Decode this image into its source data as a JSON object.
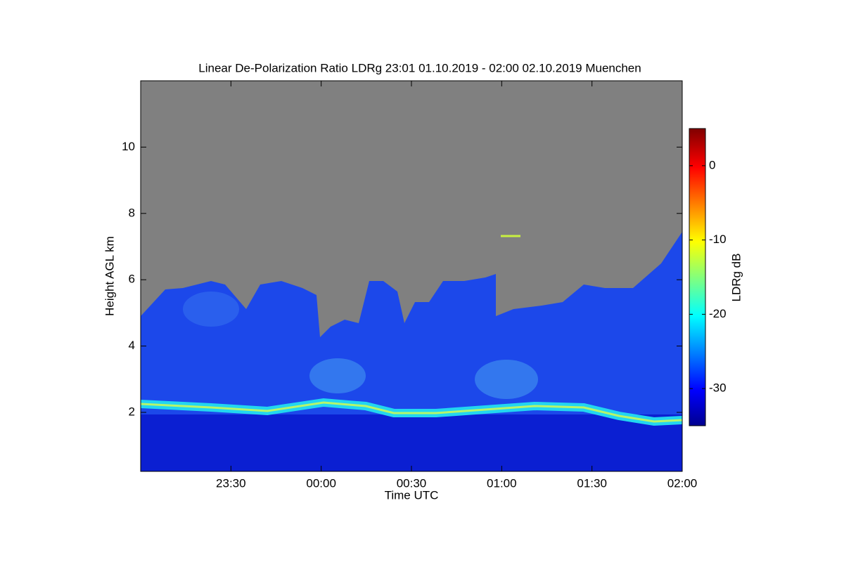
{
  "chart_data": {
    "type": "heatmap",
    "title": "Linear De-Polarization Ratio LDRg   23:01 01.10.2019 - 02:00 02.10.2019 Muenchen",
    "x_label": "Time UTC",
    "y_label": "Height AGL km",
    "xlim": [
      0,
      180
    ],
    "xticks": [
      {
        "value": 30,
        "label": "23:30"
      },
      {
        "value": 60,
        "label": "00:00"
      },
      {
        "value": 90,
        "label": "00:30"
      },
      {
        "value": 120,
        "label": "01:00"
      },
      {
        "value": 150,
        "label": "01:30"
      },
      {
        "value": 180,
        "label": "02:00"
      }
    ],
    "ylim": [
      0.22,
      12
    ],
    "yticks": [
      2,
      4,
      6,
      8,
      10
    ],
    "colorbar": {
      "label": "LDRg dB",
      "lim": [
        -35,
        5
      ],
      "ticks": [
        0,
        -10,
        -20,
        -30
      ],
      "colormap": "jet"
    }
  }
}
